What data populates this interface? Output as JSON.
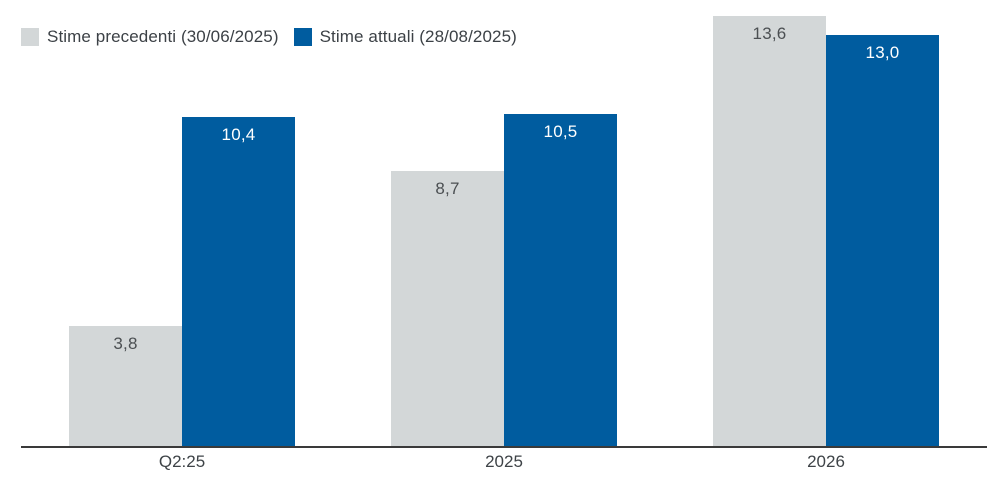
{
  "chart_data": {
    "type": "bar",
    "title": "",
    "xlabel": "",
    "ylabel": "",
    "categories": [
      "Q2:25",
      "2025",
      "2026"
    ],
    "series": [
      {
        "name": "Stime precedenti (30/06/2025)",
        "values": [
          3.8,
          8.7,
          13.6
        ],
        "labels": [
          "3,8",
          "8,7",
          "13,6"
        ],
        "color": "#d3d7d8",
        "label_color": "#4b4f52"
      },
      {
        "name": "Stime attuali (28/08/2025)",
        "values": [
          10.4,
          10.5,
          13.0
        ],
        "labels": [
          "10,4",
          "10,5",
          "13,0"
        ],
        "color": "#005c9f",
        "label_color": "#ffffff"
      }
    ],
    "ylim": [
      0,
      14.1
    ],
    "grid": false,
    "value_labels": "inside-top",
    "legend_position": "top-left"
  },
  "colors": {
    "axis_line": "#3a3a3a",
    "background": "#ffffff"
  }
}
